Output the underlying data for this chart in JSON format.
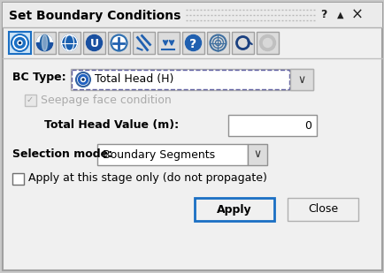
{
  "title": "Set Boundary Conditions",
  "bg_outer": "#c8c8c8",
  "bg_dialog": "#f0f0f0",
  "title_fontsize": 10,
  "title_color": "#000000",
  "bc_type_label": "BC Type:",
  "bc_type_value": "Total Head (H)",
  "seepage_label": "Seepage face condition",
  "total_head_label": "Total Head Value (m):",
  "total_head_value": "0",
  "selection_label": "Selection mode:",
  "selection_value": "Boundary Segments",
  "checkbox_label": "Apply at this stage only (do not propagate)",
  "apply_button": "Apply",
  "close_button": "Close",
  "blue": "#1a6fc4",
  "blue_light": "#cce4f7",
  "gray_border": "#a0a0a0",
  "gray_icon_bg": "#dcdcdc",
  "dashed_color": "#6060a0",
  "seepage_gray": "#aaaaaa",
  "apply_border": "#1a6fc4",
  "close_border": "#b0b0b0",
  "title_grip_color": "#b8b8b8"
}
